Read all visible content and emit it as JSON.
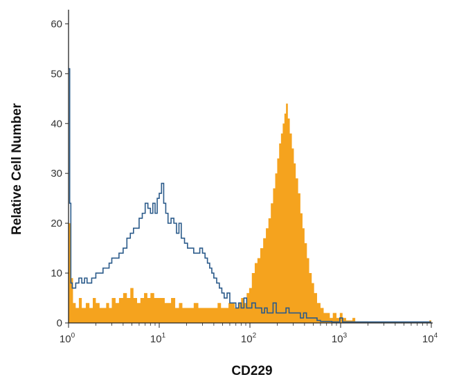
{
  "chart_data": {
    "type": "histogram",
    "title": "",
    "xlabel": "CD229",
    "ylabel": "Relative Cell Number",
    "x_scale": "log",
    "xlim": [
      1,
      10000
    ],
    "ylim": [
      0,
      62
    ],
    "grid": false,
    "legend": "none",
    "x_ticks": [
      {
        "base": "10",
        "exp": "0",
        "value": 1
      },
      {
        "base": "10",
        "exp": "1",
        "value": 10
      },
      {
        "base": "10",
        "exp": "2",
        "value": 100
      },
      {
        "base": "10",
        "exp": "3",
        "value": 1000
      },
      {
        "base": "10",
        "exp": "4",
        "value": 10000
      }
    ],
    "y_ticks": [
      "0",
      "10",
      "20",
      "30",
      "40",
      "50",
      "60"
    ],
    "series": [
      {
        "style": "filled",
        "color": "#F5A31E",
        "points": [
          [
            1.0,
            20
          ],
          [
            1.06,
            9
          ],
          [
            1.12,
            4
          ],
          [
            1.2,
            3
          ],
          [
            1.3,
            5
          ],
          [
            1.4,
            3
          ],
          [
            1.55,
            4
          ],
          [
            1.7,
            3
          ],
          [
            1.85,
            5
          ],
          [
            2.0,
            4
          ],
          [
            2.2,
            3
          ],
          [
            2.4,
            3
          ],
          [
            2.6,
            4
          ],
          [
            2.8,
            3
          ],
          [
            3.0,
            5
          ],
          [
            3.3,
            4
          ],
          [
            3.6,
            5
          ],
          [
            4.0,
            6
          ],
          [
            4.4,
            5
          ],
          [
            4.8,
            7
          ],
          [
            5.2,
            5
          ],
          [
            5.7,
            4
          ],
          [
            6.2,
            5
          ],
          [
            6.8,
            6
          ],
          [
            7.4,
            5
          ],
          [
            8.0,
            6
          ],
          [
            8.8,
            5
          ],
          [
            9.6,
            5
          ],
          [
            10.5,
            5
          ],
          [
            11.5,
            4
          ],
          [
            12.5,
            4
          ],
          [
            13.5,
            5
          ],
          [
            15.0,
            3
          ],
          [
            16.5,
            4
          ],
          [
            18.0,
            3
          ],
          [
            20.0,
            3
          ],
          [
            22.0,
            3
          ],
          [
            24.0,
            4
          ],
          [
            27.0,
            3
          ],
          [
            30.0,
            3
          ],
          [
            33.0,
            3
          ],
          [
            36.0,
            3
          ],
          [
            40.0,
            3
          ],
          [
            44.0,
            4
          ],
          [
            48.0,
            3
          ],
          [
            53.0,
            3
          ],
          [
            58.0,
            4
          ],
          [
            63.0,
            4
          ],
          [
            68.0,
            3
          ],
          [
            74.0,
            4
          ],
          [
            80.0,
            5
          ],
          [
            86.0,
            4
          ],
          [
            92.0,
            6
          ],
          [
            98.0,
            7
          ],
          [
            105.0,
            10
          ],
          [
            113.0,
            12
          ],
          [
            121.0,
            13
          ],
          [
            130.0,
            15
          ],
          [
            140.0,
            17
          ],
          [
            150.0,
            19
          ],
          [
            160.0,
            21
          ],
          [
            170.0,
            24
          ],
          [
            180.0,
            27
          ],
          [
            190.0,
            30
          ],
          [
            200.0,
            33
          ],
          [
            210.0,
            36
          ],
          [
            220.0,
            38
          ],
          [
            230.0,
            40
          ],
          [
            240.0,
            42
          ],
          [
            250.0,
            44
          ],
          [
            262.0,
            41
          ],
          [
            275.0,
            38
          ],
          [
            290.0,
            35
          ],
          [
            305.0,
            32
          ],
          [
            320.0,
            29
          ],
          [
            340.0,
            26
          ],
          [
            360.0,
            22
          ],
          [
            380.0,
            19
          ],
          [
            400.0,
            16
          ],
          [
            425.0,
            13
          ],
          [
            450.0,
            10
          ],
          [
            480.0,
            8
          ],
          [
            510.0,
            6
          ],
          [
            550.0,
            4
          ],
          [
            600.0,
            3
          ],
          [
            650.0,
            2
          ],
          [
            700.0,
            2
          ],
          [
            760.0,
            1
          ],
          [
            820.0,
            2
          ],
          [
            900.0,
            1
          ],
          [
            980.0,
            2
          ],
          [
            1050.0,
            1
          ],
          [
            1150.0,
            0.5
          ],
          [
            1250.0,
            0.5
          ],
          [
            1350.0,
            1
          ],
          [
            1450.0,
            0.3
          ],
          [
            2000.0,
            0.2
          ],
          [
            3000.0,
            0.2
          ],
          [
            5000.0,
            0.2
          ],
          [
            8000.0,
            0.2
          ],
          [
            9500.0,
            0.5
          ],
          [
            10000.0,
            0.2
          ]
        ]
      },
      {
        "style": "outline",
        "color": "#2A5A8A",
        "points": [
          [
            1.0,
            51
          ],
          [
            1.03,
            24
          ],
          [
            1.06,
            8
          ],
          [
            1.1,
            7
          ],
          [
            1.15,
            7
          ],
          [
            1.2,
            8
          ],
          [
            1.3,
            9
          ],
          [
            1.4,
            8
          ],
          [
            1.5,
            9
          ],
          [
            1.6,
            8
          ],
          [
            1.7,
            8
          ],
          [
            1.8,
            9
          ],
          [
            1.9,
            9
          ],
          [
            2.0,
            10
          ],
          [
            2.2,
            10
          ],
          [
            2.4,
            11
          ],
          [
            2.6,
            11
          ],
          [
            2.8,
            12
          ],
          [
            3.0,
            13
          ],
          [
            3.3,
            13
          ],
          [
            3.6,
            14
          ],
          [
            4.0,
            15
          ],
          [
            4.4,
            17
          ],
          [
            4.8,
            18
          ],
          [
            5.2,
            19
          ],
          [
            5.6,
            19
          ],
          [
            6.0,
            21
          ],
          [
            6.5,
            22
          ],
          [
            7.0,
            24
          ],
          [
            7.5,
            23
          ],
          [
            8.0,
            22
          ],
          [
            8.5,
            24
          ],
          [
            9.0,
            22
          ],
          [
            9.5,
            25
          ],
          [
            10.0,
            26
          ],
          [
            10.6,
            28
          ],
          [
            11.2,
            24
          ],
          [
            11.8,
            22
          ],
          [
            12.5,
            20
          ],
          [
            13.5,
            21
          ],
          [
            14.5,
            20
          ],
          [
            15.5,
            18
          ],
          [
            16.5,
            20
          ],
          [
            17.5,
            17
          ],
          [
            19.0,
            16
          ],
          [
            20.5,
            15
          ],
          [
            22.0,
            15
          ],
          [
            24.0,
            14
          ],
          [
            26.0,
            14
          ],
          [
            28.0,
            15
          ],
          [
            30.0,
            14
          ],
          [
            32.0,
            13
          ],
          [
            34.0,
            12
          ],
          [
            36.0,
            11
          ],
          [
            38.0,
            10
          ],
          [
            40.0,
            9
          ],
          [
            43.0,
            8
          ],
          [
            46.0,
            7
          ],
          [
            49.0,
            6
          ],
          [
            52.0,
            5
          ],
          [
            56.0,
            6
          ],
          [
            60.0,
            4
          ],
          [
            65.0,
            4
          ],
          [
            70.0,
            3
          ],
          [
            75.0,
            4
          ],
          [
            80.0,
            3
          ],
          [
            86.0,
            5
          ],
          [
            92.0,
            3
          ],
          [
            98.0,
            3
          ],
          [
            105.0,
            4
          ],
          [
            115.0,
            3
          ],
          [
            125.0,
            3
          ],
          [
            135.0,
            2
          ],
          [
            145.0,
            3
          ],
          [
            155.0,
            2
          ],
          [
            165.0,
            2
          ],
          [
            180.0,
            4
          ],
          [
            195.0,
            2
          ],
          [
            210.0,
            2
          ],
          [
            230.0,
            2
          ],
          [
            250.0,
            3
          ],
          [
            270.0,
            2
          ],
          [
            290.0,
            2
          ],
          [
            310.0,
            2
          ],
          [
            330.0,
            2
          ],
          [
            360.0,
            1
          ],
          [
            390.0,
            2
          ],
          [
            420.0,
            1
          ],
          [
            460.0,
            1
          ],
          [
            500.0,
            1
          ],
          [
            550.0,
            0.5
          ],
          [
            600.0,
            0.3
          ],
          [
            700.0,
            0.3
          ],
          [
            800.0,
            0.2
          ],
          [
            900.0,
            0.2
          ],
          [
            980.0,
            1
          ],
          [
            1050.0,
            0.2
          ],
          [
            2000.0,
            0.2
          ],
          [
            5000.0,
            0.2
          ],
          [
            10000.0,
            0.2
          ]
        ]
      }
    ]
  }
}
